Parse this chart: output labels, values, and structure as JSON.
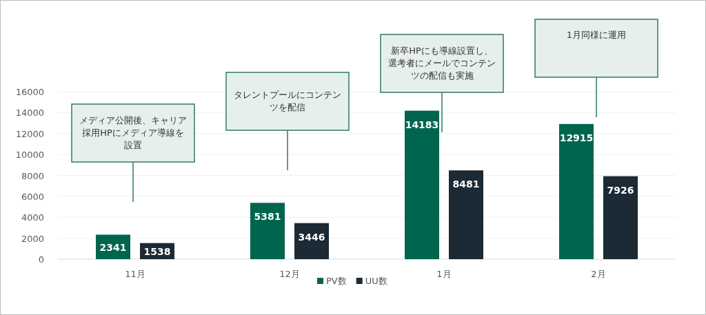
{
  "chart_data": {
    "type": "bar",
    "categories": [
      "11月",
      "12月",
      "1月",
      "2月"
    ],
    "series": [
      {
        "name": "PV数",
        "color": "#00654f",
        "values": [
          2341,
          5381,
          14183,
          12915
        ]
      },
      {
        "name": "UU数",
        "color": "#1b2a35",
        "values": [
          1538,
          3446,
          8481,
          7926
        ]
      }
    ],
    "ylim": [
      0,
      16000
    ],
    "yticks": [
      0,
      2000,
      4000,
      6000,
      8000,
      10000,
      12000,
      14000,
      16000
    ],
    "grid": "y",
    "legend": "bottom",
    "data_labels": true,
    "annotations": [
      "メディア公開後、キャリア採用HPにメディア導線を設置",
      "タレントプールにコンテンツを配信",
      "新卒HPにも導線設置し、選考者にメールでコンテンツの配信も実施",
      "1月同様に運用"
    ]
  }
}
